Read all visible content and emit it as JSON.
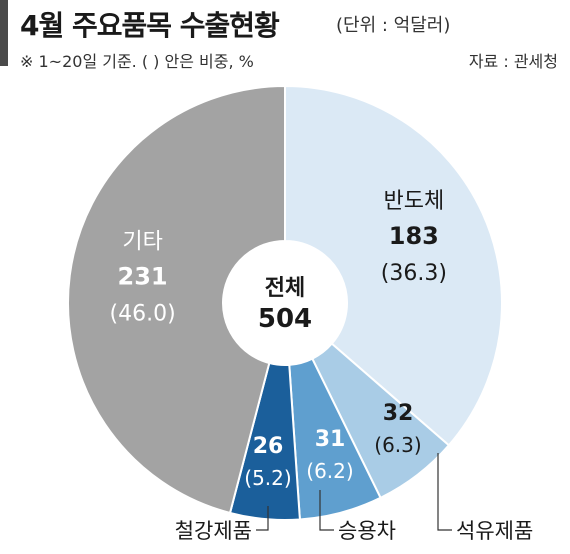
{
  "header": {
    "title": "4월 주요품목 수출현황",
    "unit": "(단위 : 억달러)",
    "note": "※ 1~20일 기준. (  ) 안은 비중, %",
    "source": "자료 : 관세청"
  },
  "chart_data": {
    "type": "pie",
    "style": "donut",
    "center_label": "전체",
    "center_value": "504",
    "total": 504,
    "slices": [
      {
        "name": "반도체",
        "value": 183,
        "value_label": "183",
        "share": 36.3,
        "share_label": "(36.3)",
        "color": "#dbe9f5",
        "text_color": "#1a1a1a",
        "label_position": "inside"
      },
      {
        "name": "석유제품",
        "value": 32,
        "value_label": "32",
        "share": 6.3,
        "share_label": "(6.3)",
        "color": "#a9cce6",
        "text_color": "#1a1a1a",
        "label_position": "outside"
      },
      {
        "name": "승용차",
        "value": 31,
        "value_label": "31",
        "share": 6.2,
        "share_label": "(6.2)",
        "color": "#5f9fcf",
        "text_color": "#ffffff",
        "label_position": "outside"
      },
      {
        "name": "철강제품",
        "value": 26,
        "value_label": "26",
        "share": 5.2,
        "share_label": "(5.2)",
        "color": "#1b5f9b",
        "text_color": "#ffffff",
        "label_position": "outside"
      },
      {
        "name": "기타",
        "value": 231,
        "value_label": "231",
        "share": 46.0,
        "share_label": "(46.0)",
        "color": "#a3a3a3",
        "text_color": "#ffffff",
        "label_position": "inside"
      }
    ]
  }
}
